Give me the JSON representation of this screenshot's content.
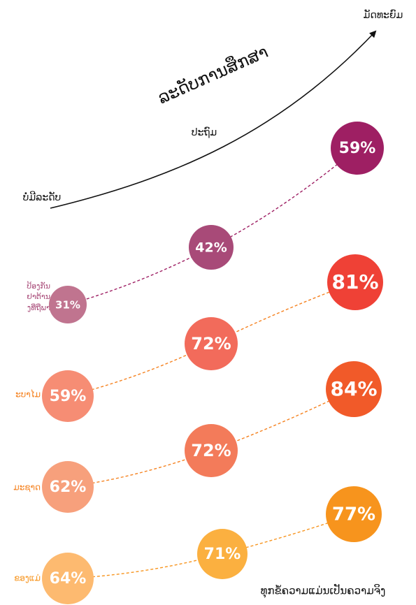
{
  "axis": {
    "title": "ລະດັບການສຶກສາ",
    "levels": [
      "ບໍ່ມີລະດັບ",
      "ປະຖົມ",
      "ມັດທະຍົມ"
    ]
  },
  "rows": [
    {
      "label": [
        "ປ້ອງກັນ",
        "ຢາຕ້ານ",
        "ງທີ່ຖືພາ"
      ],
      "color": "#9e1f63",
      "points": [
        {
          "text": "31%",
          "color": "#c0748f"
        },
        {
          "text": "42%",
          "color": "#a84a78"
        },
        {
          "text": "59%",
          "color": "#9e1f63"
        }
      ]
    },
    {
      "label": [
        "ະບາໄມ"
      ],
      "color": "#f58220",
      "points": [
        {
          "text": "59%",
          "color": "#f68d74"
        },
        {
          "text": "72%",
          "color": "#f26b5b"
        },
        {
          "text": "81%",
          "color": "#ef4136"
        }
      ]
    },
    {
      "label": [
        "ມະຊາດ"
      ],
      "color": "#f58220",
      "points": [
        {
          "text": "62%",
          "color": "#f7a07c"
        },
        {
          "text": "72%",
          "color": "#f37b5a"
        },
        {
          "text": "84%",
          "color": "#f15a29"
        }
      ]
    },
    {
      "label": [
        "ຂອງແມ່"
      ],
      "color": "#f7941d",
      "points": [
        {
          "text": "64%",
          "color": "#fdba70"
        },
        {
          "text": "71%",
          "color": "#fbb040"
        },
        {
          "text": "77%",
          "color": "#f7941d"
        }
      ]
    }
  ],
  "footer": "ທຸກຂໍ້ຄວາມແມ່ນເປັນຄວາມຈິງ"
}
